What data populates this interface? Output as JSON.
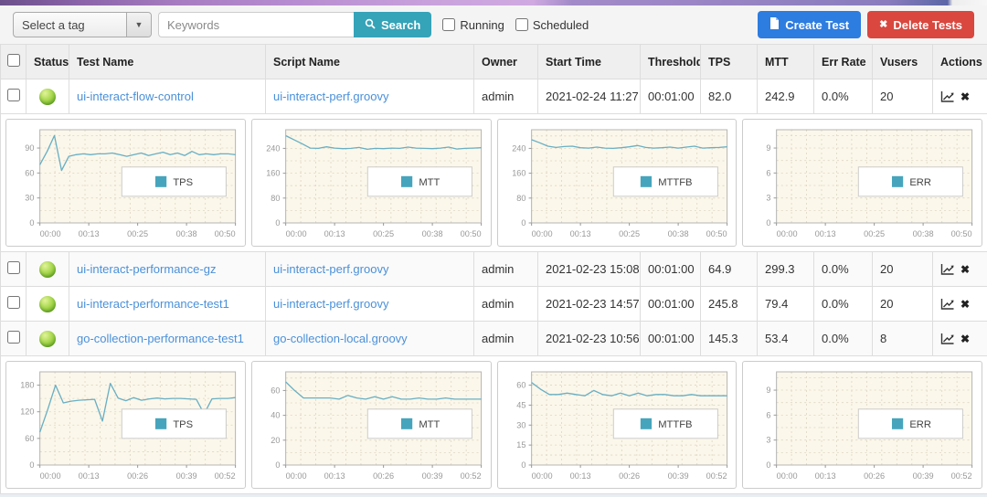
{
  "colors": {
    "accent_teal": "#35a3b8",
    "line_teal": "#68afc4",
    "legend_square": "#46a5bc",
    "create_blue": "#2d7ce0",
    "delete_red": "#d9473f",
    "link_blue": "#4a90d9",
    "plot_background": "#fbf7ea",
    "status_green": "#7ab82d"
  },
  "toolbar": {
    "tag_select_value": "Select a tag",
    "keywords_placeholder": "Keywords",
    "search_label": "Search",
    "running_label": "Running",
    "scheduled_label": "Scheduled",
    "create_label": "Create Test",
    "delete_label": "Delete Tests"
  },
  "table": {
    "headers": [
      "",
      "Status",
      "Test Name",
      "Script Name",
      "Owner",
      "Start Time",
      "Threshold",
      "TPS",
      "MTT",
      "Err Rate",
      "Vusers",
      "Actions"
    ],
    "rows": [
      {
        "test_name": "ui-interact-flow-control",
        "script_name": "ui-interact-perf.groovy",
        "owner": "admin",
        "start_time": "2021-02-24 11:27",
        "threshold": "00:01:00",
        "tps": "82.0",
        "mtt": "242.9",
        "err_rate": "0.0%",
        "vusers": "20"
      },
      {
        "test_name": "ui-interact-performance-gz",
        "script_name": "ui-interact-perf.groovy",
        "owner": "admin",
        "start_time": "2021-02-23 15:08",
        "threshold": "00:01:00",
        "tps": "64.9",
        "mtt": "299.3",
        "err_rate": "0.0%",
        "vusers": "20"
      },
      {
        "test_name": "ui-interact-performance-test1",
        "script_name": "ui-interact-perf.groovy",
        "owner": "admin",
        "start_time": "2021-02-23 14:57",
        "threshold": "00:01:00",
        "tps": "245.8",
        "mtt": "79.4",
        "err_rate": "0.0%",
        "vusers": "20"
      },
      {
        "test_name": "go-collection-performance-test1",
        "script_name": "go-collection-local.groovy",
        "owner": "admin",
        "start_time": "2021-02-23 10:56",
        "threshold": "00:01:00",
        "tps": "145.3",
        "mtt": "53.4",
        "err_rate": "0.0%",
        "vusers": "8"
      }
    ]
  },
  "chart_data": [
    {
      "type": "line",
      "legend": "TPS",
      "yticks": [
        0,
        30,
        60,
        90
      ],
      "ylim": [
        0,
        112
      ],
      "xticks": [
        "00:00",
        "00:13",
        "00:25",
        "00:38",
        "00:50"
      ],
      "values": [
        70,
        86,
        105,
        63,
        80,
        82,
        83,
        82,
        83,
        83,
        84,
        82,
        80,
        82,
        84,
        81,
        83,
        85,
        82,
        84,
        81,
        86,
        82,
        83,
        82,
        83,
        83,
        82
      ]
    },
    {
      "type": "line",
      "legend": "MTT",
      "yticks": [
        0,
        80,
        160,
        240
      ],
      "ylim": [
        0,
        300
      ],
      "xticks": [
        "00:00",
        "00:13",
        "00:25",
        "00:38",
        "00:50"
      ],
      "values": [
        281,
        268,
        255,
        241,
        240,
        245,
        241,
        239,
        240,
        243,
        237,
        240,
        239,
        241,
        240,
        244,
        241,
        240,
        239,
        241,
        244,
        238,
        240,
        241,
        242
      ]
    },
    {
      "type": "line",
      "legend": "MTTFB",
      "yticks": [
        0,
        80,
        160,
        240
      ],
      "ylim": [
        0,
        300
      ],
      "xticks": [
        "00:00",
        "00:13",
        "00:25",
        "00:38",
        "00:50"
      ],
      "values": [
        268,
        258,
        247,
        243,
        246,
        247,
        242,
        241,
        244,
        241,
        240,
        242,
        245,
        249,
        243,
        241,
        242,
        244,
        241,
        244,
        247,
        241,
        242,
        243,
        245
      ]
    },
    {
      "type": "line",
      "legend": "ERR",
      "yticks": [
        0,
        3,
        6,
        9
      ],
      "ylim": [
        0,
        11.2
      ],
      "xticks": [
        "00:00",
        "00:13",
        "00:25",
        "00:38",
        "00:50"
      ],
      "values": []
    },
    {
      "type": "line",
      "legend": "TPS",
      "yticks": [
        0,
        60,
        120,
        180
      ],
      "ylim": [
        0,
        210
      ],
      "xticks": [
        "00:00",
        "00:13",
        "00:26",
        "00:39",
        "00:52"
      ],
      "values": [
        74,
        125,
        180,
        140,
        144,
        146,
        147,
        148,
        99,
        184,
        151,
        145,
        152,
        146,
        149,
        151,
        149,
        150,
        150,
        149,
        148,
        115,
        149,
        150,
        150,
        152
      ]
    },
    {
      "type": "line",
      "legend": "MTT",
      "yticks": [
        0,
        20,
        40,
        60
      ],
      "ylim": [
        0,
        75
      ],
      "xticks": [
        "00:00",
        "00:13",
        "00:26",
        "00:39",
        "00:52"
      ],
      "values": [
        67,
        60,
        54,
        54,
        54,
        54,
        53,
        56,
        54,
        53,
        55,
        53,
        55,
        53,
        53,
        54,
        53,
        53,
        54,
        53,
        53,
        53,
        53
      ]
    },
    {
      "type": "line",
      "legend": "MTTFB",
      "yticks": [
        0,
        15,
        30,
        45,
        60
      ],
      "ylim": [
        0,
        70
      ],
      "xticks": [
        "00:00",
        "00:13",
        "00:26",
        "00:39",
        "00:52"
      ],
      "values": [
        62,
        57,
        53,
        53,
        54,
        53,
        52,
        56,
        53,
        52,
        54,
        52,
        54,
        52,
        53,
        53,
        52,
        52,
        53,
        52,
        52,
        52,
        52
      ]
    },
    {
      "type": "line",
      "legend": "ERR",
      "yticks": [
        0,
        3,
        6,
        9
      ],
      "ylim": [
        0,
        11.2
      ],
      "xticks": [
        "00:00",
        "00:13",
        "00:26",
        "00:39",
        "00:52"
      ],
      "values": []
    }
  ]
}
